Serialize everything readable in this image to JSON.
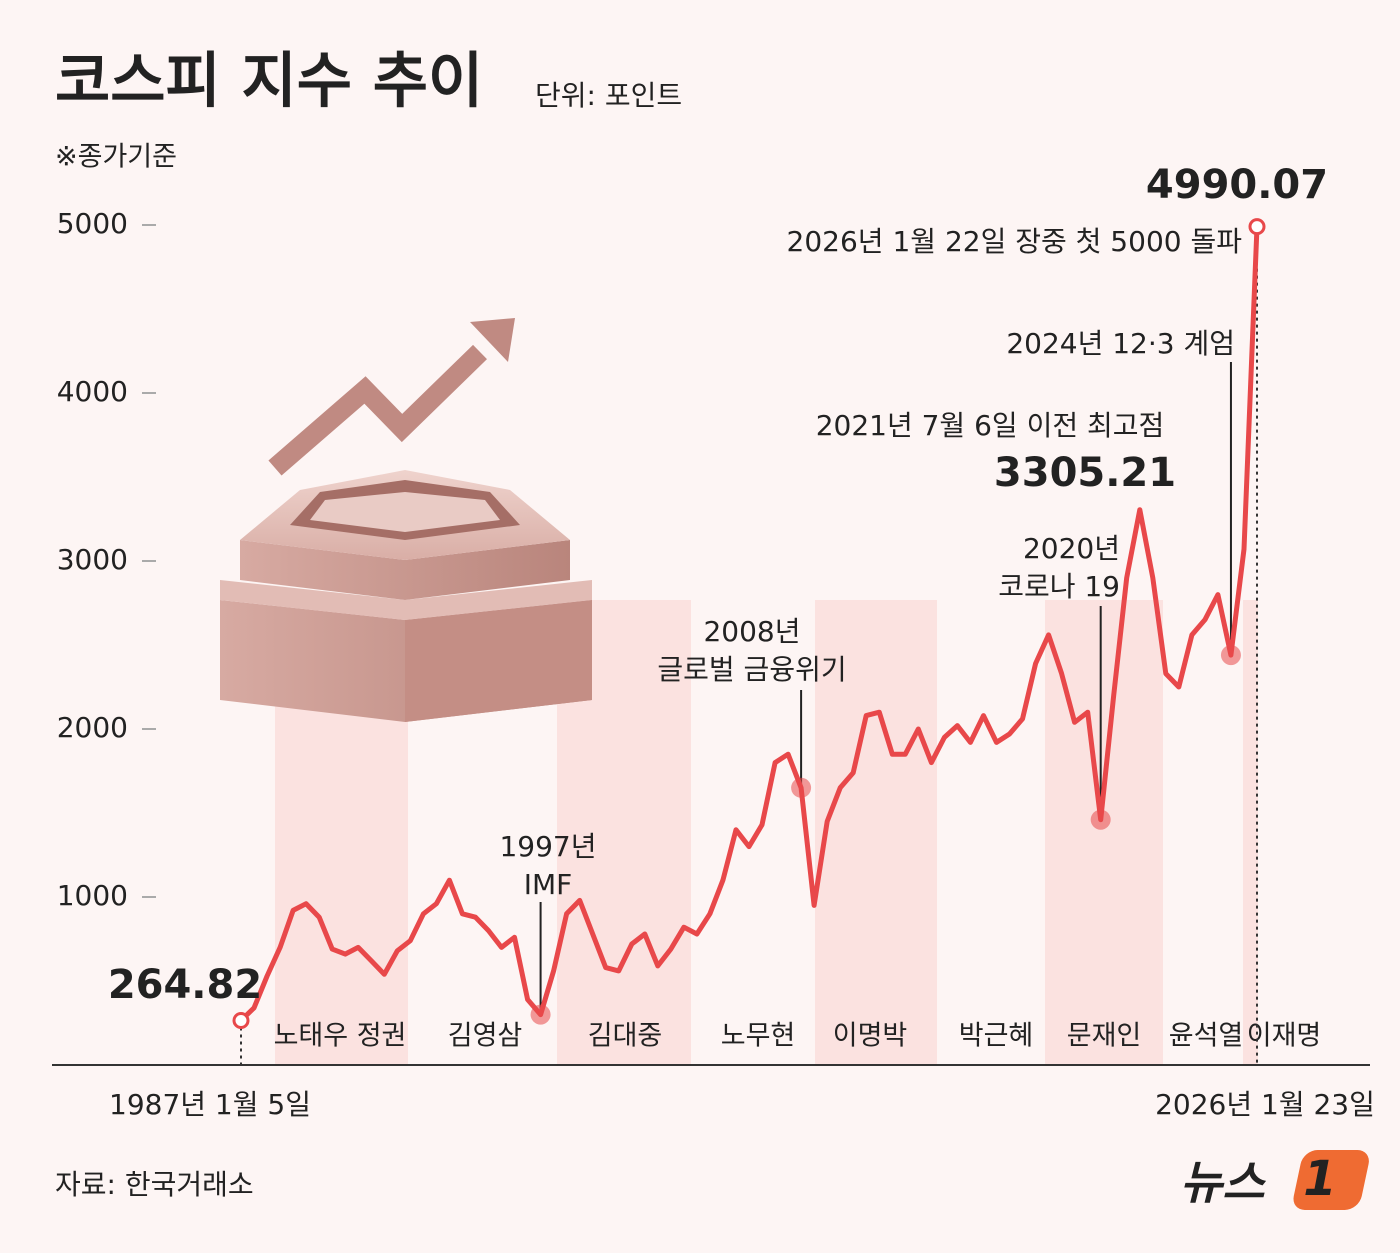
{
  "chart_data": {
    "type": "line",
    "title": "코스피 지수 추이",
    "unit": "단위: 포인트",
    "note": "※종가기준",
    "source": "자료: 한국거래소",
    "logo": [
      "뉴스",
      "1"
    ],
    "color": "#e8484a",
    "categories": [
      "1987년 1월 5일",
      null,
      null,
      null,
      null,
      null,
      null,
      null,
      null,
      null,
      null,
      null,
      null,
      null,
      null,
      null,
      null,
      null,
      null,
      null,
      null,
      null,
      null,
      null,
      null,
      null,
      null,
      null,
      null,
      null,
      null,
      null,
      null,
      null,
      null,
      null,
      null,
      null,
      null,
      null,
      null,
      null,
      null,
      null,
      null,
      null,
      null,
      null,
      null,
      null,
      null,
      null,
      null,
      null,
      null,
      null,
      null,
      null,
      null,
      null,
      null,
      null,
      null,
      null,
      null,
      null,
      null,
      null,
      null,
      null,
      null,
      null,
      null,
      null,
      null,
      null,
      null,
      null,
      "2026년 1월 23일"
    ],
    "values": [
      264.82,
      340,
      530,
      700,
      920,
      960,
      880,
      690,
      660,
      700,
      620,
      540,
      680,
      740,
      900,
      960,
      1100,
      900,
      880,
      800,
      700,
      760,
      390,
      300,
      560,
      900,
      980,
      780,
      580,
      560,
      720,
      780,
      590,
      690,
      820,
      780,
      900,
      1100,
      1400,
      1300,
      1430,
      1800,
      1850,
      1650,
      950,
      1450,
      1650,
      1740,
      2080,
      2100,
      1850,
      1850,
      2000,
      1800,
      1950,
      2020,
      1920,
      2080,
      1920,
      1970,
      2060,
      2390,
      2560,
      2330,
      2040,
      2100,
      1460,
      2200,
      2900,
      3305.21,
      2900,
      2330,
      2250,
      2560,
      2650,
      2800,
      2440,
      3070,
      4990.07
    ],
    "ylim": [
      0,
      5000
    ],
    "yticks": [
      1000,
      2000,
      3000,
      4000,
      5000
    ],
    "eras": [
      "노태우 정권",
      "김영삼",
      "김대중",
      "노무현",
      "이명박",
      "박근혜",
      "문재인",
      "윤석열",
      "이재명"
    ],
    "annotations": [
      {
        "lines": [
          "2026년 1월 22일 장중 첫 5000 돌파"
        ]
      },
      {
        "lines": [
          "2024년 12·3 계엄"
        ]
      },
      {
        "lines": [
          "2021년 7월 6일 이전 최고점"
        ]
      },
      {
        "lines": [
          "2020년",
          "코로나 19"
        ]
      },
      {
        "lines": [
          "2008년",
          "글로벌 금융위기"
        ]
      },
      {
        "lines": [
          "1997년",
          "IMF"
        ]
      }
    ]
  }
}
